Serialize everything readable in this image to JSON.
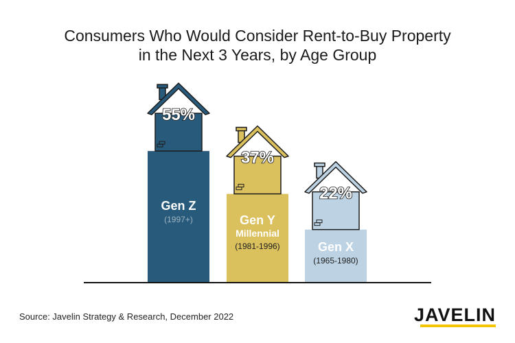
{
  "title_line1": "Consumers Who Would Consider Rent-to-Buy Property",
  "title_line2": "in the Next 3 Years, by Age Group",
  "source": "Source: Javelin Strategy & Research, December 2022",
  "logo": "JAVELIN",
  "colors": {
    "gen_z": "#285a7b",
    "gen_y": "#dbc05e",
    "gen_x": "#bdd3e3",
    "outline": "#1c1c1c",
    "baseline": "#111111",
    "logo_accent": "#f2c500"
  },
  "chart_data": {
    "type": "bar",
    "title": "Consumers Who Would Consider Rent-to-Buy Property in the Next 3 Years, by Age Group",
    "categories": [
      "Gen Z",
      "Gen Y",
      "Gen X"
    ],
    "values": [
      55,
      37,
      22
    ],
    "value_labels": [
      "55%",
      "37%",
      "22%"
    ],
    "sublabels": [
      [
        "(1997+)"
      ],
      [
        "Millennial",
        "(1981-1996)"
      ],
      [
        "(1965-1980)"
      ]
    ],
    "unit": "%",
    "ylim": [
      0,
      60
    ],
    "grid": false,
    "legend": "none",
    "style": "house-shaped bars"
  }
}
